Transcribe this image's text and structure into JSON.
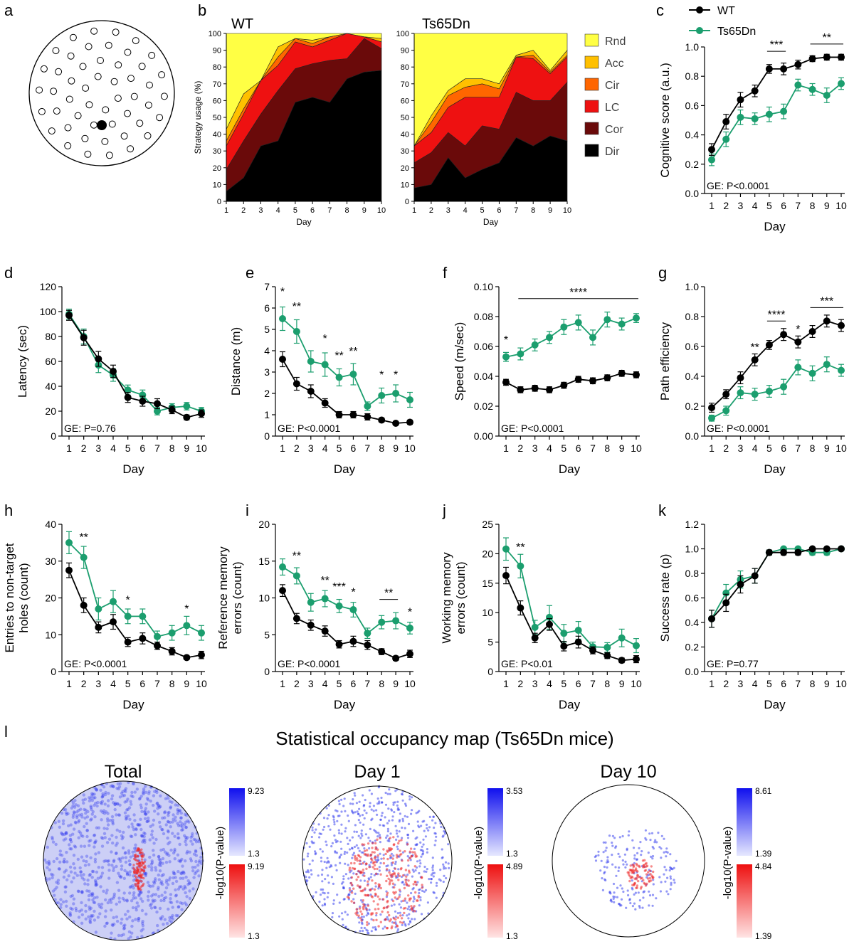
{
  "colors": {
    "wt": "#000000",
    "ts": "#1b9e6e",
    "rnd": "#ffff44",
    "acc": "#ffc000",
    "cir": "#ff6600",
    "lc": "#ee1111",
    "cor": "#6a0a0a",
    "dir": "#000000",
    "map_blue": "#2a34ee",
    "map_red": "#ee2a2a"
  },
  "panels": {
    "a": {
      "letter": "a"
    },
    "b": {
      "letter": "b",
      "sub_titles": [
        "WT",
        "Ts65Dn"
      ],
      "ylabel": "Strategy usage (%)",
      "xlabel": "Day",
      "legend": [
        "Rnd",
        "Acc",
        "Cir",
        "LC",
        "Cor",
        "Dir"
      ]
    },
    "c": {
      "letter": "c",
      "legend": [
        "WT",
        "Ts65Dn"
      ]
    },
    "l": {
      "letter": "l",
      "title": "Statistical occupancy map (Ts65Dn mice)",
      "map_titles": [
        "Total",
        "Day 1",
        "Day 10"
      ],
      "cb_label": "-log10(P-value)",
      "cb_values": [
        [
          "9.23",
          "1.3",
          "9.19",
          "1.3"
        ],
        [
          "3.53",
          "1.3",
          "4.89",
          "1.3"
        ],
        [
          "8.61",
          "1.39",
          "4.84",
          "1.39"
        ]
      ]
    }
  },
  "chart_data": [
    {
      "type": "area",
      "panel": "b",
      "title": "WT",
      "xlabel": "Day",
      "ylabel": "Strategy usage (%)",
      "ylim": [
        0,
        100
      ],
      "x": [
        1,
        2,
        3,
        4,
        5,
        6,
        7,
        8,
        9,
        10
      ],
      "series": [
        {
          "name": "Dir",
          "values": [
            6,
            14,
            33,
            36,
            59,
            62,
            59,
            73,
            77,
            78
          ]
        },
        {
          "name": "Cor",
          "values": [
            13,
            22,
            19,
            30,
            20,
            20,
            25,
            12,
            20,
            13
          ]
        },
        {
          "name": "LC",
          "values": [
            14,
            16,
            20,
            15,
            16,
            10,
            12,
            15,
            1,
            4
          ]
        },
        {
          "name": "Cir",
          "values": [
            3,
            3,
            0,
            5,
            2,
            2,
            2,
            0,
            0,
            0
          ]
        },
        {
          "name": "Acc",
          "values": [
            7,
            9,
            0,
            6,
            0,
            2,
            0,
            0,
            0,
            2
          ]
        },
        {
          "name": "Rnd",
          "values": [
            57,
            36,
            28,
            8,
            3,
            4,
            2,
            0,
            2,
            3
          ]
        }
      ]
    },
    {
      "type": "area",
      "panel": "b",
      "title": "Ts65Dn",
      "xlabel": "Day",
      "ylim": [
        0,
        100
      ],
      "x": [
        1,
        2,
        3,
        4,
        5,
        6,
        7,
        8,
        9,
        10
      ],
      "series": [
        {
          "name": "Dir",
          "values": [
            8,
            10,
            26,
            14,
            19,
            23,
            38,
            33,
            39,
            36
          ]
        },
        {
          "name": "Cor",
          "values": [
            15,
            19,
            15,
            19,
            26,
            20,
            27,
            27,
            21,
            35
          ]
        },
        {
          "name": "LC",
          "values": [
            10,
            12,
            15,
            29,
            17,
            19,
            21,
            25,
            16,
            15
          ]
        },
        {
          "name": "Cir",
          "values": [
            0,
            6,
            7,
            6,
            8,
            5,
            0,
            2,
            1,
            1
          ]
        },
        {
          "name": "Acc",
          "values": [
            0,
            4,
            3,
            5,
            3,
            3,
            1,
            3,
            1,
            3
          ]
        },
        {
          "name": "Rnd",
          "values": [
            67,
            49,
            34,
            27,
            27,
            30,
            13,
            10,
            22,
            10
          ]
        }
      ]
    },
    {
      "type": "line",
      "panel": "c",
      "xlabel": "Day",
      "ylabel": "Cognitive score (a.u.)",
      "ylim": [
        0,
        1
      ],
      "yticks": [
        "0.0",
        "0.2",
        "0.4",
        "0.6",
        "0.8",
        "1.0"
      ],
      "ge": "GE: P<0.0001",
      "x": [
        1,
        2,
        3,
        4,
        5,
        6,
        7,
        8,
        9,
        10
      ],
      "series": [
        {
          "name": "WT",
          "values": [
            0.3,
            0.49,
            0.64,
            0.7,
            0.85,
            0.85,
            0.88,
            0.92,
            0.93,
            0.93
          ],
          "err": [
            0.04,
            0.05,
            0.05,
            0.04,
            0.03,
            0.04,
            0.03,
            0.02,
            0.02,
            0.02
          ]
        },
        {
          "name": "Ts65Dn",
          "values": [
            0.23,
            0.37,
            0.52,
            0.51,
            0.54,
            0.56,
            0.74,
            0.71,
            0.67,
            0.75
          ],
          "err": [
            0.04,
            0.05,
            0.05,
            0.04,
            0.05,
            0.05,
            0.04,
            0.04,
            0.05,
            0.04
          ]
        }
      ],
      "annotations": [
        {
          "text": "***",
          "x1": 5,
          "x2": 6,
          "y": 0.97
        },
        {
          "text": "**",
          "x1": 8,
          "x2": 10,
          "y": 1.02
        }
      ]
    },
    {
      "type": "line",
      "panel": "d",
      "xlabel": "Day",
      "ylabel": "Latency (sec)",
      "ylim": [
        0,
        120
      ],
      "yticks": [
        "0",
        "20",
        "40",
        "60",
        "80",
        "100",
        "120"
      ],
      "ge": "GE: P=0.76",
      "x": [
        1,
        2,
        3,
        4,
        5,
        6,
        7,
        8,
        9,
        10
      ],
      "series": [
        {
          "name": "WT",
          "values": [
            97,
            79,
            62,
            52,
            31,
            28,
            26,
            21,
            15,
            18
          ],
          "err": [
            4,
            6,
            6,
            5,
            4,
            4,
            4,
            3,
            2,
            3
          ]
        },
        {
          "name": "Ts65Dn",
          "values": [
            98,
            80,
            57,
            49,
            37,
            33,
            20,
            23,
            24,
            20
          ],
          "err": [
            4,
            6,
            6,
            5,
            4,
            4,
            3,
            3,
            3,
            3
          ]
        }
      ],
      "annotations": []
    },
    {
      "type": "line",
      "panel": "e",
      "xlabel": "Day",
      "ylabel": "Distance (m)",
      "ylim": [
        0,
        7
      ],
      "yticks": [
        "0",
        "1",
        "2",
        "3",
        "4",
        "5",
        "6",
        "7"
      ],
      "ge": "GE: P<0.0001",
      "x": [
        1,
        2,
        3,
        4,
        5,
        6,
        7,
        8,
        9,
        10
      ],
      "series": [
        {
          "name": "WT",
          "values": [
            3.6,
            2.45,
            2.1,
            1.55,
            1.0,
            1.0,
            0.9,
            0.75,
            0.6,
            0.65
          ],
          "err": [
            0.35,
            0.3,
            0.3,
            0.2,
            0.15,
            0.15,
            0.15,
            0.1,
            0.08,
            0.1
          ]
        },
        {
          "name": "Ts65Dn",
          "values": [
            5.5,
            4.9,
            3.5,
            3.35,
            2.75,
            2.9,
            1.4,
            1.9,
            2.0,
            1.7
          ],
          "err": [
            0.55,
            0.55,
            0.5,
            0.55,
            0.4,
            0.5,
            0.2,
            0.35,
            0.4,
            0.35
          ]
        }
      ],
      "annotations": [
        {
          "text": "*",
          "x": 1,
          "y": 6.6
        },
        {
          "text": "**",
          "x": 2,
          "y": 5.9
        },
        {
          "text": "*",
          "x": 4,
          "y": 4.4
        },
        {
          "text": "**",
          "x": 5,
          "y": 3.6
        },
        {
          "text": "**",
          "x": 6,
          "y": 3.8
        },
        {
          "text": "*",
          "x": 8,
          "y": 2.7
        },
        {
          "text": "*",
          "x": 9,
          "y": 2.7
        }
      ]
    },
    {
      "type": "line",
      "panel": "f",
      "xlabel": "Day",
      "ylabel": "Speed (m/sec)",
      "ylim": [
        0,
        0.1
      ],
      "yticks": [
        "0.00",
        "0.02",
        "0.04",
        "0.06",
        "0.08",
        "0.10"
      ],
      "ge": "GE: P<0.0001",
      "x": [
        1,
        2,
        3,
        4,
        5,
        6,
        7,
        8,
        9,
        10
      ],
      "series": [
        {
          "name": "WT",
          "values": [
            0.036,
            0.031,
            0.032,
            0.031,
            0.034,
            0.038,
            0.037,
            0.039,
            0.042,
            0.041
          ],
          "err": [
            0.002,
            0.002,
            0.002,
            0.002,
            0.002,
            0.002,
            0.002,
            0.002,
            0.002,
            0.002
          ]
        },
        {
          "name": "Ts65Dn",
          "values": [
            0.053,
            0.055,
            0.061,
            0.066,
            0.073,
            0.076,
            0.066,
            0.078,
            0.075,
            0.079
          ],
          "err": [
            0.003,
            0.004,
            0.004,
            0.004,
            0.005,
            0.005,
            0.005,
            0.005,
            0.004,
            0.003
          ]
        }
      ],
      "annotations": [
        {
          "text": "*",
          "x": 1,
          "y": 0.062
        },
        {
          "text": "****",
          "x1": 2,
          "x2": 10,
          "y": 0.092
        }
      ]
    },
    {
      "type": "line",
      "panel": "g",
      "xlabel": "Day",
      "ylabel": "Path efficiency",
      "ylim": [
        0,
        1
      ],
      "yticks": [
        "0.0",
        "0.2",
        "0.4",
        "0.6",
        "0.8",
        "1.0"
      ],
      "ge": "GE: P<0.0001",
      "x": [
        1,
        2,
        3,
        4,
        5,
        6,
        7,
        8,
        9,
        10
      ],
      "series": [
        {
          "name": "WT",
          "values": [
            0.19,
            0.28,
            0.39,
            0.51,
            0.61,
            0.68,
            0.63,
            0.7,
            0.77,
            0.74
          ],
          "err": [
            0.03,
            0.03,
            0.04,
            0.04,
            0.03,
            0.04,
            0.04,
            0.04,
            0.04,
            0.04
          ]
        },
        {
          "name": "Ts65Dn",
          "values": [
            0.12,
            0.17,
            0.29,
            0.28,
            0.3,
            0.33,
            0.46,
            0.42,
            0.48,
            0.44
          ],
          "err": [
            0.02,
            0.03,
            0.04,
            0.04,
            0.04,
            0.05,
            0.05,
            0.05,
            0.05,
            0.04
          ]
        }
      ],
      "annotations": [
        {
          "text": "**",
          "x": 4,
          "y": 0.57
        },
        {
          "text": "****",
          "x1": 5,
          "x2": 6,
          "y": 0.77
        },
        {
          "text": "*",
          "x": 7,
          "y": 0.69
        },
        {
          "text": "***",
          "x1": 8,
          "x2": 10,
          "y": 0.86
        }
      ]
    },
    {
      "type": "line",
      "panel": "h",
      "xlabel": "Day",
      "ylabel": "Entries to non-target holes (count)",
      "ylim": [
        0,
        40
      ],
      "yticks": [
        "0",
        "10",
        "20",
        "30",
        "40"
      ],
      "ge": "GE: P<0.0001",
      "x": [
        1,
        2,
        3,
        4,
        5,
        6,
        7,
        8,
        9,
        10
      ],
      "series": [
        {
          "name": "WT",
          "values": [
            27.5,
            18,
            12,
            13.5,
            8,
            9,
            7,
            5.5,
            3.8,
            4.5
          ],
          "err": [
            2,
            2,
            1.5,
            2,
            1.2,
            1.5,
            1,
            1,
            0.5,
            1
          ]
        },
        {
          "name": "Ts65Dn",
          "values": [
            35,
            31,
            17,
            19,
            15,
            15,
            9.5,
            10.5,
            12.5,
            10.5
          ],
          "err": [
            3,
            3,
            3,
            3,
            2,
            2,
            1.5,
            2,
            2.5,
            2
          ]
        }
      ],
      "annotations": [
        {
          "text": "**",
          "x": 2,
          "y": 35.5
        },
        {
          "text": "*",
          "x": 5,
          "y": 18.5
        },
        {
          "text": "*",
          "x": 9,
          "y": 16
        }
      ]
    },
    {
      "type": "line",
      "panel": "i",
      "xlabel": "Day",
      "ylabel": "Reference memory errors (count)",
      "ylim": [
        0,
        20
      ],
      "yticks": [
        "0",
        "5",
        "10",
        "15",
        "20"
      ],
      "ge": "GE: P<0.0001",
      "x": [
        1,
        2,
        3,
        4,
        5,
        6,
        7,
        8,
        9,
        10
      ],
      "series": [
        {
          "name": "WT",
          "values": [
            11,
            7.2,
            6.3,
            5.5,
            3.7,
            4.1,
            3.6,
            2.7,
            1.8,
            2.4
          ],
          "err": [
            0.8,
            0.7,
            0.7,
            0.7,
            0.5,
            0.7,
            0.6,
            0.4,
            0.3,
            0.5
          ]
        },
        {
          "name": "Ts65Dn",
          "values": [
            14.2,
            13,
            9.4,
            9.9,
            8.9,
            8.4,
            5.2,
            6.7,
            6.9,
            5.9
          ],
          "err": [
            1.1,
            1.1,
            1.2,
            1.1,
            0.9,
            1,
            0.7,
            0.9,
            1.1,
            0.8
          ]
        }
      ],
      "annotations": [
        {
          "text": "**",
          "x": 2,
          "y": 15.2
        },
        {
          "text": "**",
          "x": 4,
          "y": 11.9
        },
        {
          "text": "***",
          "x": 5,
          "y": 11.0
        },
        {
          "text": "*",
          "x": 6,
          "y": 10.3
        },
        {
          "text": "**",
          "x1": 8,
          "x2": 9,
          "y": 9.8
        },
        {
          "text": "*",
          "x": 10,
          "y": 7.6
        }
      ]
    },
    {
      "type": "line",
      "panel": "j",
      "xlabel": "Day",
      "ylabel": "Working memory errors (count)",
      "ylim": [
        0,
        25
      ],
      "yticks": [
        "0",
        "5",
        "10",
        "15",
        "20",
        "25"
      ],
      "ge": "GE: P<0.01",
      "x": [
        1,
        2,
        3,
        4,
        5,
        6,
        7,
        8,
        9,
        10
      ],
      "series": [
        {
          "name": "WT",
          "values": [
            16.3,
            10.8,
            5.7,
            8,
            4.3,
            5,
            3.6,
            2.7,
            1.9,
            2.1
          ],
          "err": [
            1.4,
            1.2,
            0.8,
            1,
            0.8,
            1,
            0.6,
            0.5,
            0.4,
            0.6
          ]
        },
        {
          "name": "Ts65Dn",
          "values": [
            20.8,
            17.9,
            7.5,
            9.2,
            6.5,
            7,
            4.2,
            4.1,
            5.7,
            4.4
          ],
          "err": [
            1.9,
            2,
            1.2,
            2,
            1.5,
            1.5,
            0.8,
            0.8,
            1.5,
            1.2
          ]
        }
      ],
      "annotations": [
        {
          "text": "**",
          "x": 2,
          "y": 20.5
        }
      ]
    },
    {
      "type": "line",
      "panel": "k",
      "xlabel": "Day",
      "ylabel": "Success rate (p)",
      "ylim": [
        0,
        1.2
      ],
      "yticks": [
        "0.0",
        "0.2",
        "0.4",
        "0.6",
        "0.8",
        "1.0",
        "1.2"
      ],
      "ge": "GE: P=0.77",
      "x": [
        1,
        2,
        3,
        4,
        5,
        6,
        7,
        8,
        9,
        10
      ],
      "series": [
        {
          "name": "WT",
          "values": [
            0.43,
            0.56,
            0.71,
            0.78,
            0.97,
            0.97,
            0.97,
            1.0,
            1.0,
            1.0
          ],
          "err": [
            0.07,
            0.07,
            0.07,
            0.06,
            0.02,
            0.02,
            0.02,
            0,
            0,
            0
          ]
        },
        {
          "name": "Ts65Dn",
          "values": [
            0.43,
            0.64,
            0.75,
            0.78,
            0.97,
            1.0,
            1.0,
            0.97,
            0.97,
            1.0
          ],
          "err": [
            0.07,
            0.07,
            0.07,
            0.06,
            0.02,
            0,
            0,
            0.02,
            0.02,
            0
          ]
        }
      ],
      "annotations": []
    }
  ]
}
